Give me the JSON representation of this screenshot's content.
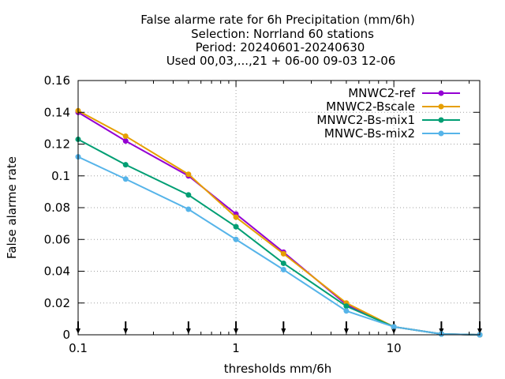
{
  "chart_data": {
    "type": "line",
    "title_lines": [
      "False alarme rate  for 6h Precipitation (mm/6h)",
      "Selection: Norrland     60 stations",
      "Period: 20240601-20240630",
      "Used 00,03,...,21 + 06-00 09-03 12-06"
    ],
    "xlabel": "thresholds mm/6h",
    "ylabel": "False alarme rate",
    "x_scale": "log",
    "xlim": [
      0.1,
      35
    ],
    "ylim": [
      0,
      0.16
    ],
    "x_ticks": [
      {
        "value": 0.1,
        "label": "0.1"
      },
      {
        "value": 1,
        "label": "1"
      },
      {
        "value": 10,
        "label": "10"
      }
    ],
    "y_ticks": [
      {
        "value": 0,
        "label": "0"
      },
      {
        "value": 0.02,
        "label": "0.02"
      },
      {
        "value": 0.04,
        "label": "0.04"
      },
      {
        "value": 0.06,
        "label": "0.06"
      },
      {
        "value": 0.08,
        "label": "0.08"
      },
      {
        "value": 0.1,
        "label": "0.1"
      },
      {
        "value": 0.12,
        "label": "0.12"
      },
      {
        "value": 0.14,
        "label": "0.14"
      },
      {
        "value": 0.16,
        "label": "0.16"
      }
    ],
    "grid": true,
    "legend_position": "top-right",
    "threshold_markers": [
      0.1,
      0.2,
      0.5,
      1,
      2,
      5,
      10,
      20,
      35
    ],
    "x": [
      0.1,
      0.2,
      0.5,
      1,
      2,
      5,
      10,
      20,
      35
    ],
    "series": [
      {
        "name": "MNWC2-ref",
        "color": "#9400d3",
        "values": [
          0.14,
          0.122,
          0.1,
          0.076,
          0.052,
          0.019,
          0.005,
          0.0005,
          0.0
        ]
      },
      {
        "name": "MNWC2-Bscale",
        "color": "#e69f00",
        "values": [
          0.141,
          0.125,
          0.101,
          0.074,
          0.051,
          0.02,
          0.005,
          0.0005,
          0.0
        ]
      },
      {
        "name": "MNWC2-Bs-mix1",
        "color": "#009e73",
        "values": [
          0.123,
          0.107,
          0.088,
          0.068,
          0.045,
          0.018,
          0.005,
          0.0005,
          0.0
        ]
      },
      {
        "name": "MNWC-Bs-mix2",
        "color": "#56b4e9",
        "values": [
          0.112,
          0.098,
          0.079,
          0.06,
          0.041,
          0.015,
          0.005,
          0.0005,
          0.0
        ]
      }
    ]
  }
}
